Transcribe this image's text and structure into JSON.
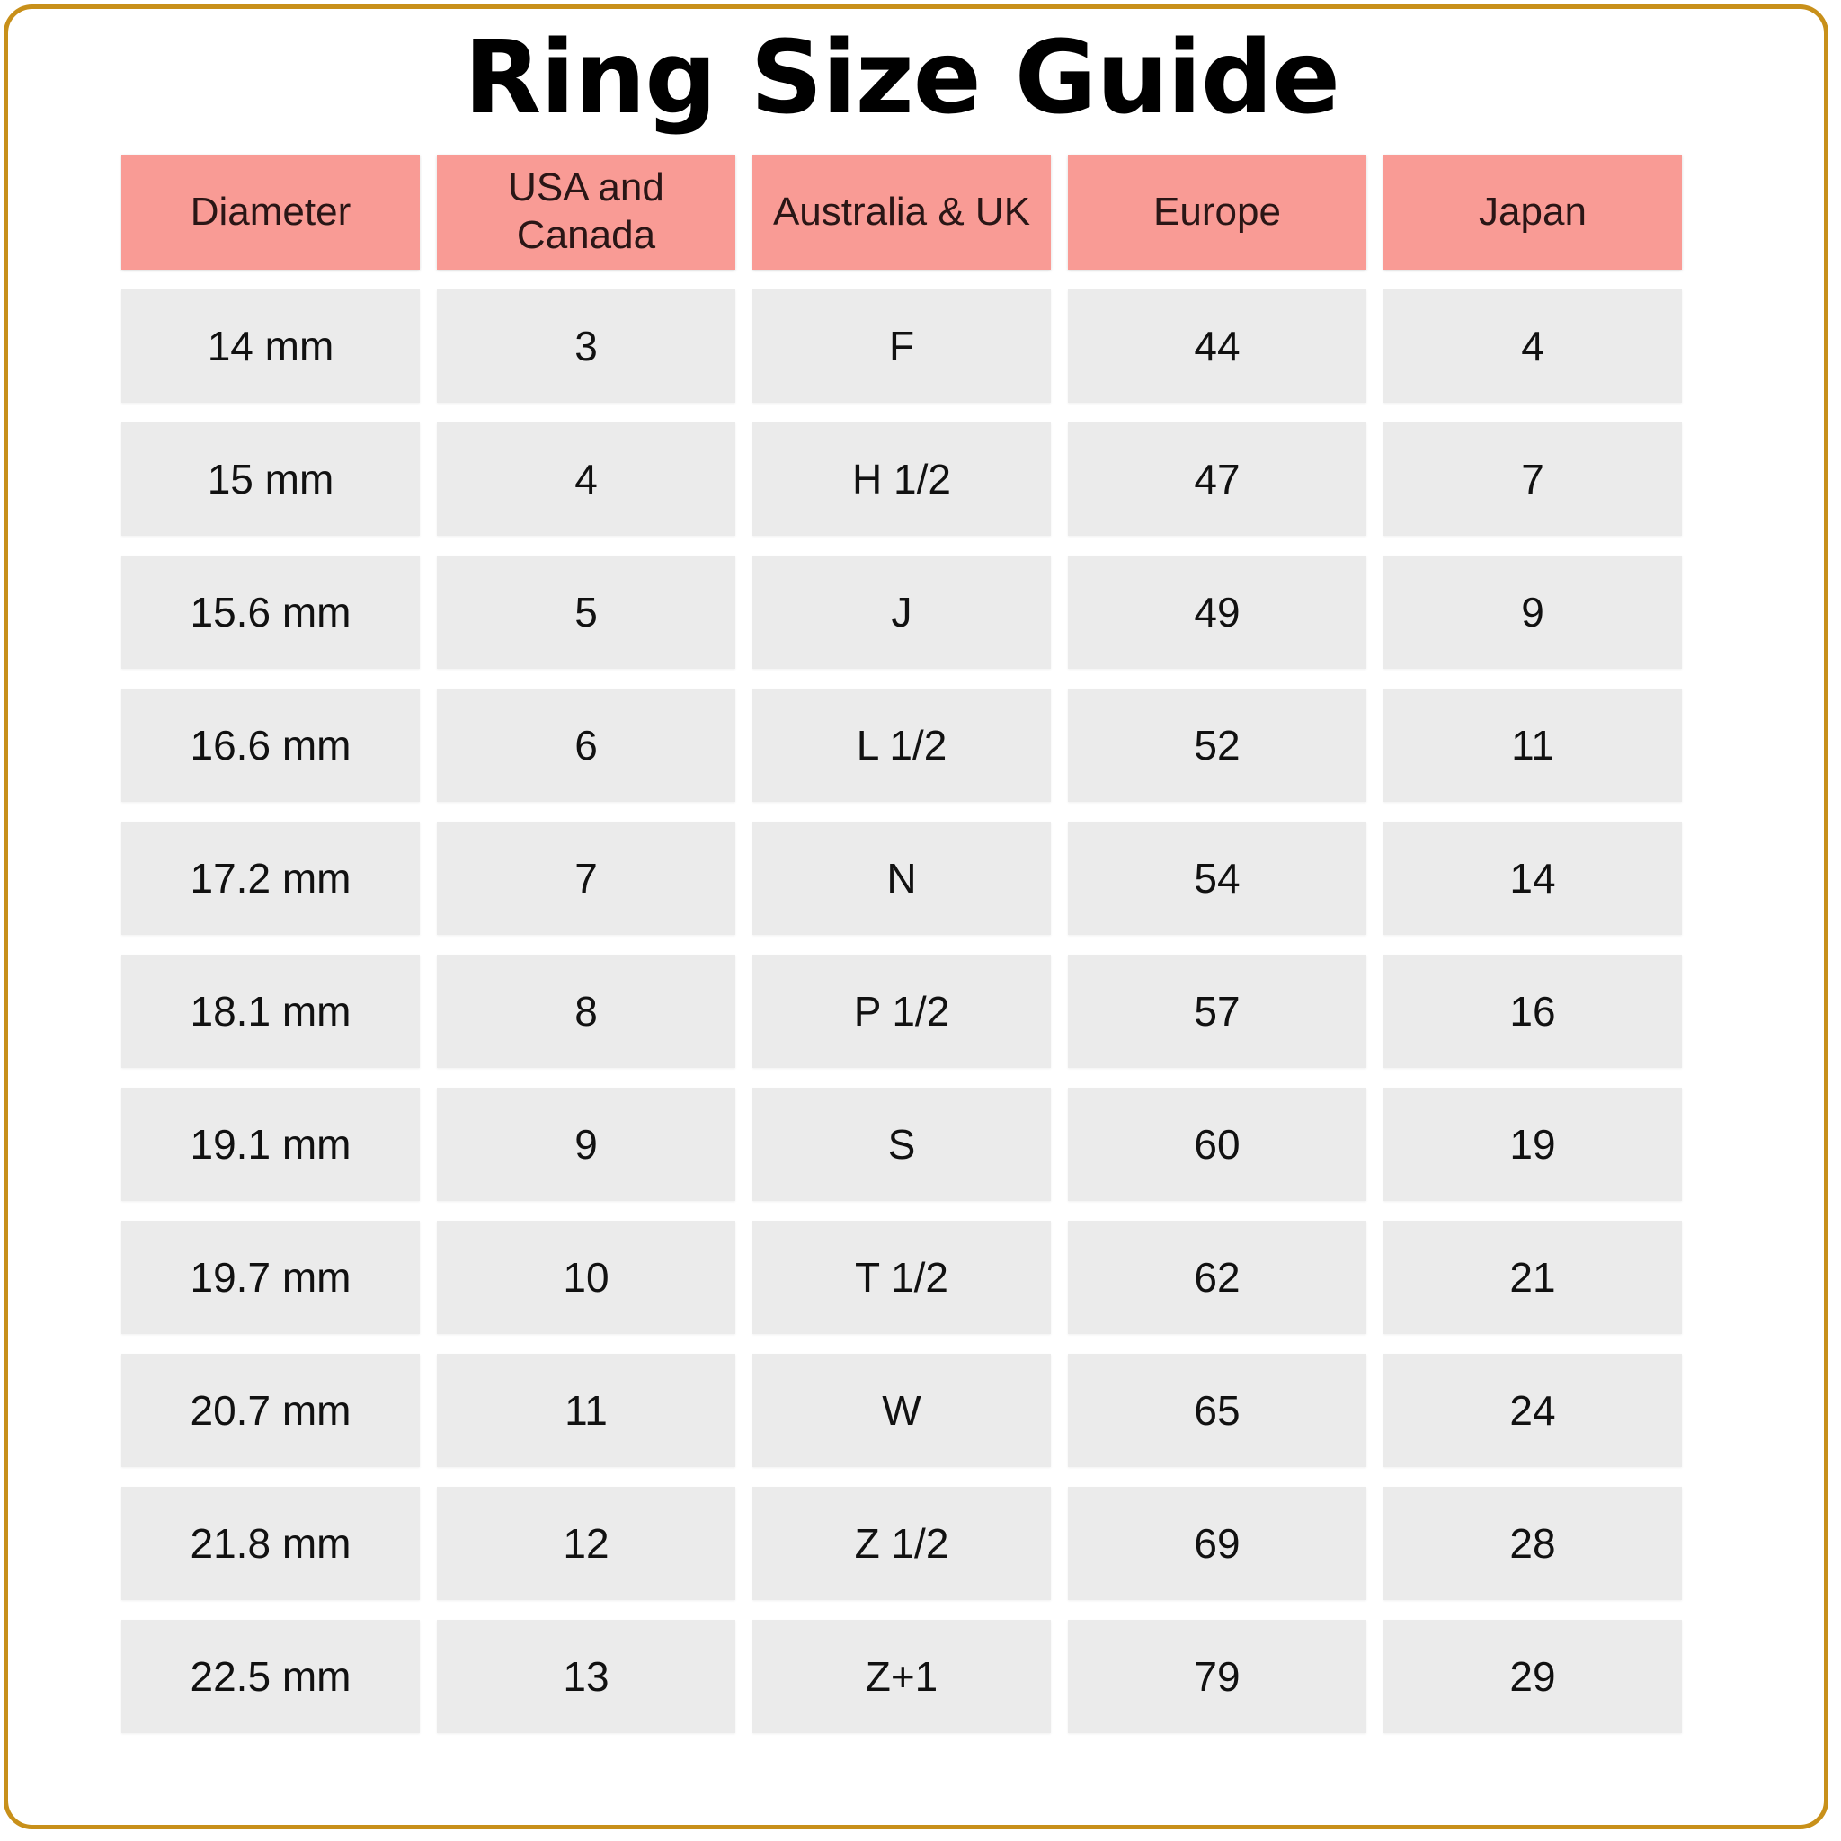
{
  "title": "Ring Size Guide",
  "colors": {
    "frame": "#c8901a",
    "header_bg": "#f99b95",
    "cell_bg": "#ebebeb"
  },
  "headers": [
    "Diameter",
    "USA and Canada",
    "Australia & UK",
    "Europe",
    "Japan"
  ],
  "rows": [
    [
      "14 mm",
      "3",
      "F",
      "44",
      "4"
    ],
    [
      "15 mm",
      "4",
      "H 1/2",
      "47",
      "7"
    ],
    [
      "15.6 mm",
      "5",
      "J",
      "49",
      "9"
    ],
    [
      "16.6 mm",
      "6",
      "L 1/2",
      "52",
      "11"
    ],
    [
      "17.2 mm",
      "7",
      "N",
      "54",
      "14"
    ],
    [
      "18.1 mm",
      "8",
      "P 1/2",
      "57",
      "16"
    ],
    [
      "19.1 mm",
      "9",
      "S",
      "60",
      "19"
    ],
    [
      "19.7 mm",
      "10",
      "T 1/2",
      "62",
      "21"
    ],
    [
      "20.7 mm",
      "11",
      "W",
      "65",
      "24"
    ],
    [
      "21.8 mm",
      "12",
      "Z 1/2",
      "69",
      "28"
    ],
    [
      "22.5 mm",
      "13",
      "Z+1",
      "79",
      "29"
    ]
  ]
}
